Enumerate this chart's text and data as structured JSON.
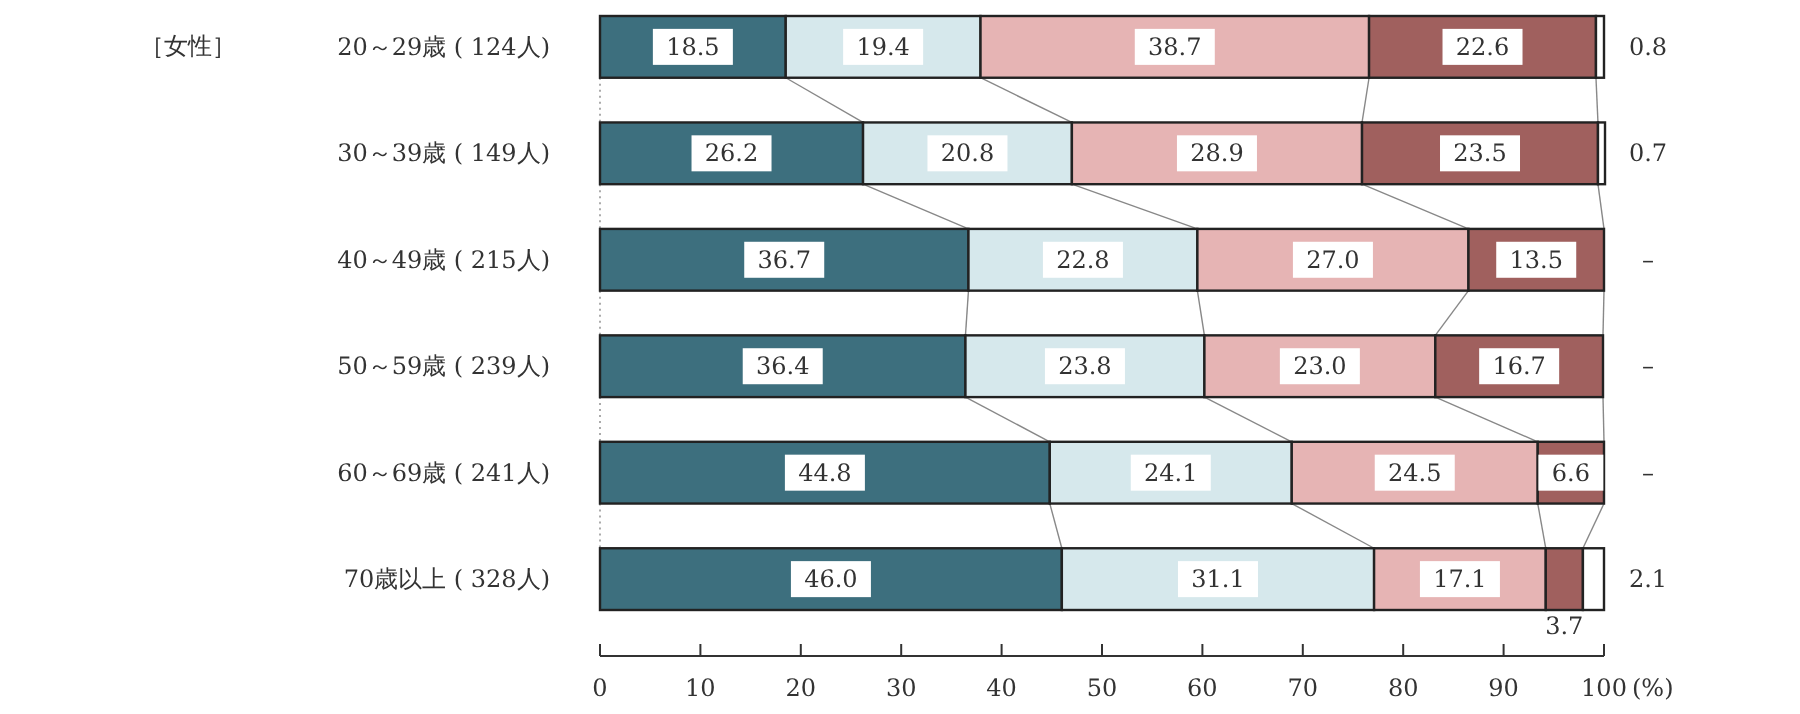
{
  "chart_data": {
    "type": "bar",
    "orientation": "horizontal",
    "stacked": true,
    "title": "［女性］",
    "xlabel": "(%)",
    "categories": [
      "20～29歳 ( 124人)",
      "30～39歳 ( 149人)",
      "40～49歳 ( 215人)",
      "50～59歳 ( 239人)",
      "60～69歳 ( 241人)",
      "70歳以上 ( 328人)"
    ],
    "xlim": [
      0,
      100
    ],
    "xticks": [
      0,
      10,
      20,
      30,
      40,
      50,
      60,
      70,
      80,
      90,
      100
    ],
    "series": [
      {
        "color": "#3d6f7e",
        "values": [
          18.5,
          26.2,
          36.7,
          36.4,
          44.8,
          46.0
        ],
        "value_labels": [
          "18.5",
          "26.2",
          "36.7",
          "36.4",
          "44.8",
          "46.0"
        ]
      },
      {
        "color": "#d6e8ec",
        "values": [
          19.4,
          20.8,
          22.8,
          23.8,
          24.1,
          31.1
        ],
        "value_labels": [
          "19.4",
          "20.8",
          "22.8",
          "23.8",
          "24.1",
          "31.1"
        ]
      },
      {
        "color": "#e6b4b4",
        "values": [
          38.7,
          28.9,
          27.0,
          23.0,
          24.5,
          17.1
        ],
        "value_labels": [
          "38.7",
          "28.9",
          "27.0",
          "23.0",
          "24.5",
          "17.1"
        ]
      },
      {
        "color": "#a0605e",
        "values": [
          22.6,
          23.5,
          13.5,
          16.7,
          6.6,
          3.7
        ],
        "value_labels": [
          "22.6",
          "23.5",
          "13.5",
          "16.7",
          "6.6",
          "3.7"
        ]
      },
      {
        "color": "#ffffff",
        "values": [
          0.8,
          0.7,
          0,
          0,
          0,
          2.1
        ],
        "value_labels": [
          "0.8",
          "0.7",
          "–",
          "–",
          "–",
          "2.1"
        ]
      }
    ],
    "grid": false
  }
}
